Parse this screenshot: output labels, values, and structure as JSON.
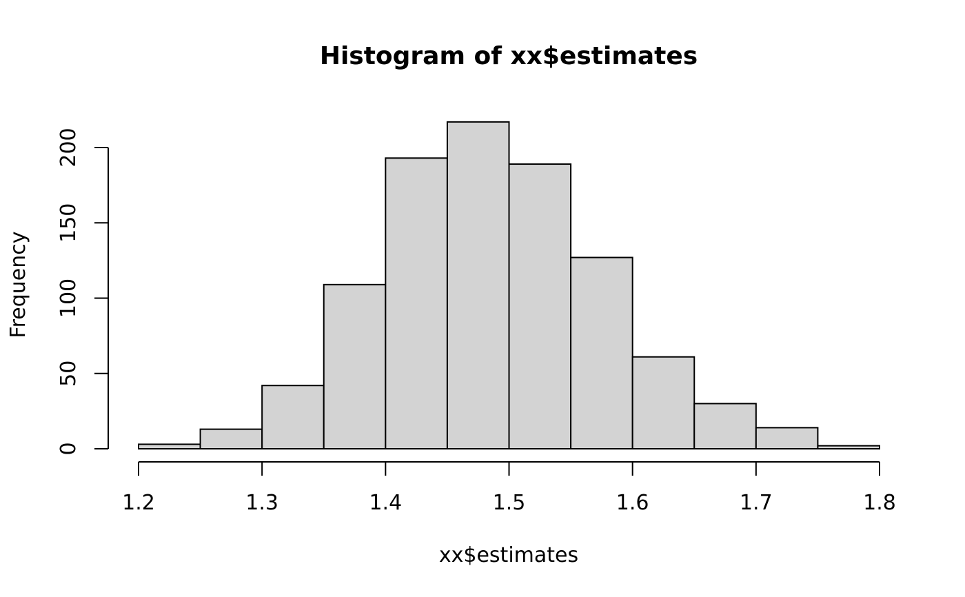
{
  "chart_data": {
    "type": "bar",
    "title": "Histogram of xx$estimates",
    "xlabel": "xx$estimates",
    "ylabel": "Frequency",
    "bin_edges": [
      1.2,
      1.25,
      1.3,
      1.35,
      1.4,
      1.45,
      1.5,
      1.55,
      1.6,
      1.65,
      1.7,
      1.75,
      1.8
    ],
    "values": [
      3,
      13,
      42,
      109,
      193,
      217,
      189,
      127,
      61,
      30,
      14,
      2
    ],
    "x_ticks": [
      "1.2",
      "1.3",
      "1.4",
      "1.5",
      "1.6",
      "1.7",
      "1.8"
    ],
    "x_tick_values": [
      1.2,
      1.3,
      1.4,
      1.5,
      1.6,
      1.7,
      1.8
    ],
    "y_ticks": [
      "0",
      "50",
      "100",
      "150",
      "200"
    ],
    "y_tick_values": [
      0,
      50,
      100,
      150,
      200
    ],
    "xlim": [
      1.2,
      1.8
    ],
    "ylim": [
      0,
      217
    ],
    "grid": false,
    "colors": {
      "bar_fill": "#d3d3d3",
      "bar_stroke": "#000000"
    }
  }
}
